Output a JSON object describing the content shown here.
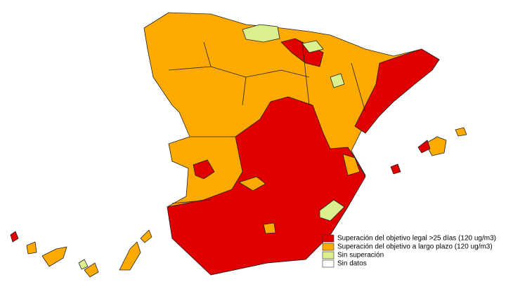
{
  "legend": [
    {
      "label": "Superación del objetivo legal >25 días (120 ug/m3)",
      "color": "#e00000"
    },
    {
      "label": "Superación del objetivo a largo plazo (120 ug/m3)",
      "color": "#ffaa00"
    },
    {
      "label": "Sin superación",
      "color": "#d9f08c"
    },
    {
      "label": "Sin datos",
      "color": "#ffffff"
    }
  ]
}
